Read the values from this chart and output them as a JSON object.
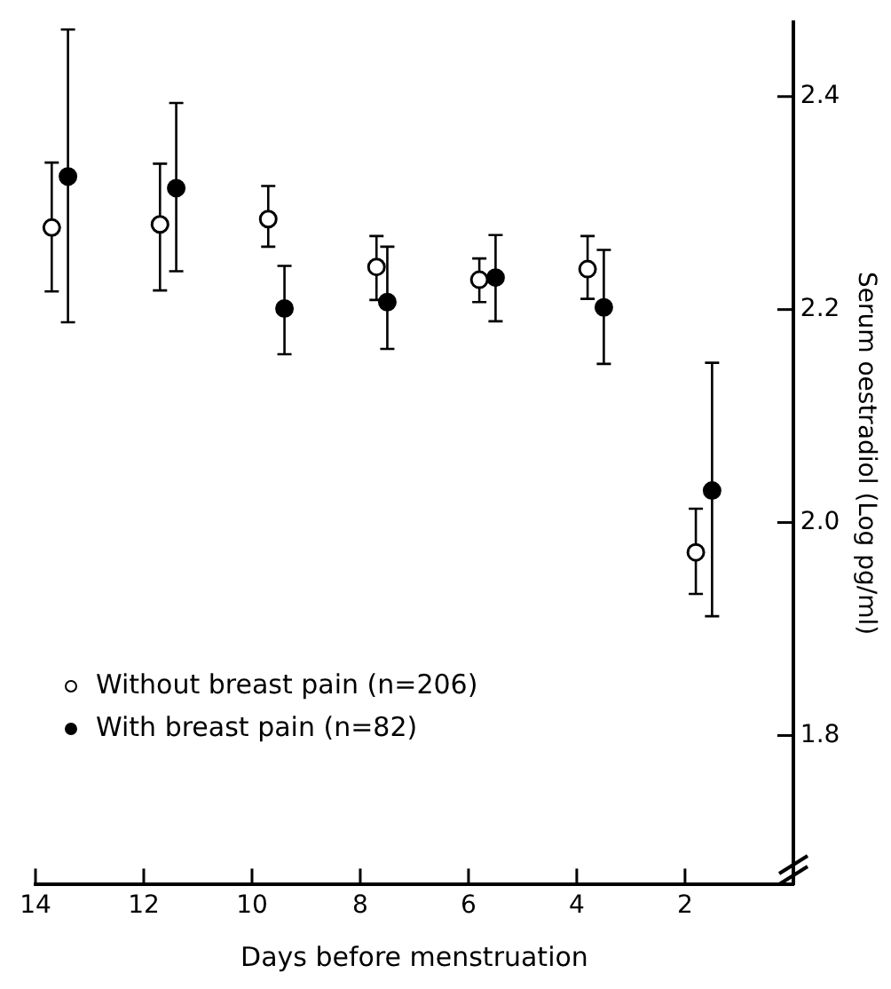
{
  "chart_data": {
    "type": "scatter",
    "xlabel": "Days before menstruation",
    "ylabel": "Serum oestradiol (Log pg/ml)",
    "xlim": [
      14,
      0
    ],
    "xticks": [
      14,
      12,
      10,
      8,
      6,
      4,
      2
    ],
    "ylim": [
      1.66,
      2.47
    ],
    "yticks": [
      {
        "value": 1.8,
        "label": "1.8"
      },
      {
        "value": 2,
        "label": "2.0"
      },
      {
        "value": 2.2,
        "label": "2.2"
      },
      {
        "value": 2.4,
        "label": "2.4"
      }
    ],
    "grid": false,
    "legend": "bottom left",
    "marker": "circle",
    "series": [
      {
        "name": "Without breast pain (n=206)",
        "color": "#ffffff",
        "x": [
          13.7,
          11.7,
          9.7,
          7.7,
          5.8,
          3.8,
          1.8
        ],
        "values": [
          2.277,
          2.28,
          2.285,
          2.24,
          2.228,
          2.238,
          1.972
        ],
        "errors": [
          [
            2.217,
            2.338
          ],
          [
            2.218,
            2.337
          ],
          [
            2.259,
            2.316
          ],
          [
            2.209,
            2.269
          ],
          [
            2.207,
            2.248
          ],
          [
            2.21,
            2.269
          ],
          [
            1.933,
            2.013
          ]
        ]
      },
      {
        "name": "With breast pain (n=82)",
        "color": "#000000",
        "x": [
          13.4,
          11.4,
          9.4,
          7.5,
          5.5,
          3.5,
          1.5
        ],
        "values": [
          2.325,
          2.314,
          2.201,
          2.207,
          2.23,
          2.202,
          2.03
        ],
        "errors": [
          [
            2.188,
            2.463
          ],
          [
            2.236,
            2.394
          ],
          [
            2.158,
            2.241
          ],
          [
            2.163,
            2.259
          ],
          [
            2.189,
            2.27
          ],
          [
            2.149,
            2.256
          ],
          [
            1.912,
            2.15
          ]
        ]
      }
    ]
  }
}
